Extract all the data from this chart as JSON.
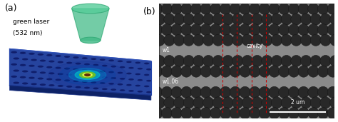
{
  "fig_width": 4.74,
  "fig_height": 1.71,
  "dpi": 100,
  "panel_a_label": "(a)",
  "panel_b_label": "(b)",
  "laser_text_line1": "green laser",
  "laser_text_line2": "(532 nm)",
  "w1_label": "w1",
  "w106_label": "w1.06",
  "cavity_label": "cavity",
  "scalebar_label": "2 um",
  "red_line_color": "#cc0000",
  "laser_cone_color": "#55cc99",
  "sem_bg_color": "#8a8a8a",
  "sem_hole_face": "#282828",
  "sem_hole_edge": "#111111"
}
